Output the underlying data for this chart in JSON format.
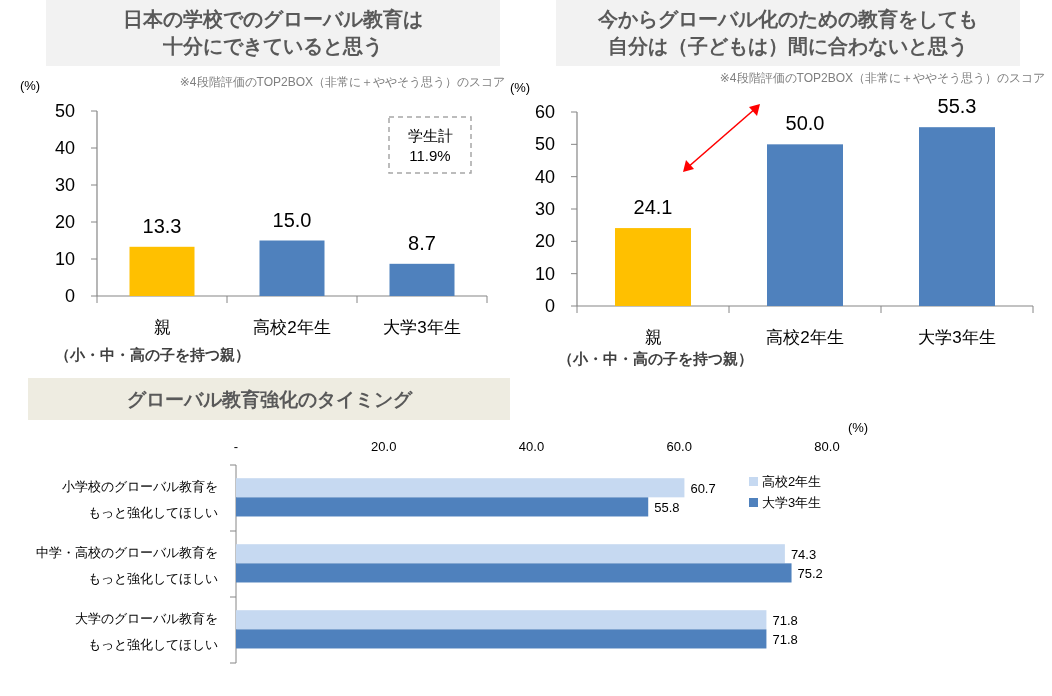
{
  "chart_data": [
    {
      "type": "bar",
      "title": "日本の学校でのグローバル教育は十分にできていると思う",
      "ylabel": "(%)",
      "categories": [
        "親",
        "高校2年生",
        "大学3年生"
      ],
      "values": [
        13.3,
        15.0,
        8.7
      ],
      "colors": [
        "#ffc000",
        "#4f81bd",
        "#4f81bd"
      ],
      "value_labels": [
        "13.3",
        "15.0",
        "8.7"
      ],
      "ylim": [
        0,
        50
      ],
      "yticks": [
        0,
        10,
        20,
        30,
        40,
        50
      ],
      "annotations": [
        "※4段階評価のTOP2BOX（非常に＋ややそう思う）のスコア",
        "（小・中・高の子を持つ親）",
        "学生計\n11.9%"
      ]
    },
    {
      "type": "bar",
      "title": "今からグローバル化のための教育をしても自分は（子どもは）間に合わないと思う",
      "ylabel": "(%)",
      "categories": [
        "親",
        "高校2年生",
        "大学3年生"
      ],
      "values": [
        24.1,
        50.0,
        55.3
      ],
      "colors": [
        "#ffc000",
        "#4f81bd",
        "#4f81bd"
      ],
      "value_labels": [
        "24.1",
        "50.0",
        "55.3"
      ],
      "ylim": [
        0,
        60
      ],
      "yticks": [
        0,
        10,
        20,
        30,
        40,
        50,
        60
      ],
      "annotations": [
        "※4段階評価のTOP2BOX（非常に＋ややそう思う）のスコア",
        "（小・中・高の子を持つ親）"
      ]
    },
    {
      "type": "bar",
      "orientation": "horizontal",
      "title": "グローバル教育強化のタイミング",
      "xlabel": "(%)",
      "categories": [
        "小学校のグローバル教育をもっと強化してほしい",
        "中学・高校のグローバル教育をもっと強化してほしい",
        "大学のグローバル教育をもっと強化してほしい"
      ],
      "xlim": [
        0,
        80
      ],
      "xticks": [
        {
          "value": 0,
          "label": "-"
        },
        {
          "value": 20,
          "label": "20.0"
        },
        {
          "value": 40,
          "label": "40.0"
        },
        {
          "value": 60,
          "label": "60.0"
        },
        {
          "value": 80,
          "label": "80.0"
        }
      ],
      "legend": "top right",
      "series": [
        {
          "name": "高校2年生",
          "color": "#c6d9f1",
          "values": [
            60.7,
            74.3,
            71.8
          ],
          "value_labels": [
            "60.7",
            "74.3",
            "71.8"
          ]
        },
        {
          "name": "大学3年生",
          "color": "#4f81bd",
          "values": [
            55.8,
            75.2,
            71.8
          ],
          "value_labels": [
            "55.8",
            "75.2",
            "71.8"
          ]
        }
      ]
    }
  ]
}
